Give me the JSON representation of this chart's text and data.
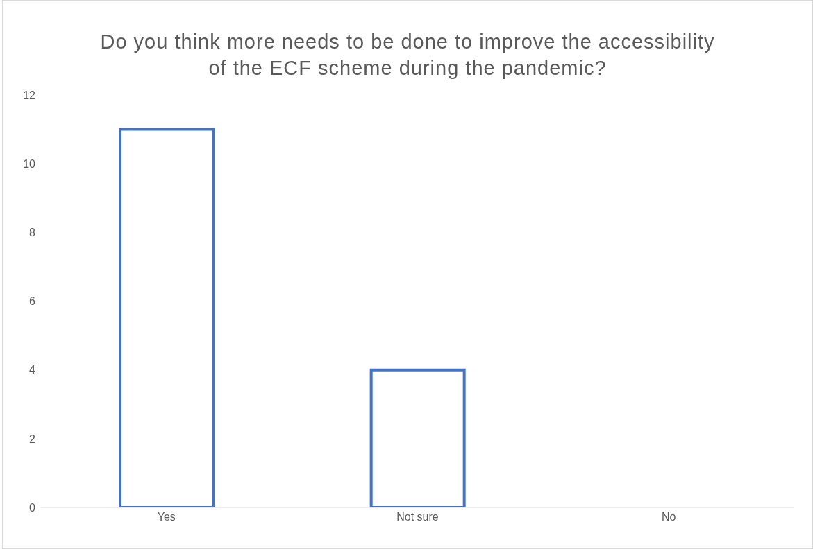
{
  "chart_data": {
    "type": "bar",
    "title": "Do you think more needs to be done to improve the accessibility of the ECF scheme during the pandemic?",
    "categories": [
      "Yes",
      "Not sure",
      "No"
    ],
    "values": [
      11,
      4,
      0
    ],
    "color": "#4472c4",
    "ylim": [
      0,
      12
    ],
    "yticks": [
      0,
      2,
      4,
      6,
      8,
      10,
      12
    ],
    "grid": false
  }
}
